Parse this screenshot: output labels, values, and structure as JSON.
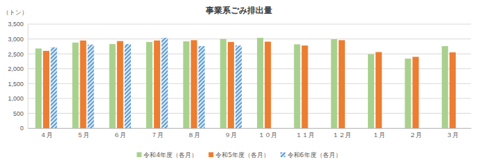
{
  "chart_data": {
    "type": "bar",
    "title": "事業系ごみ排出量",
    "y_label": "（トン）",
    "categories": [
      "４月",
      "５月",
      "６月",
      "７月",
      "８月",
      "９月",
      "１０月",
      "１１月",
      "１２月",
      "１月",
      "２月",
      "３月"
    ],
    "series": [
      {
        "name": "令和4年度（各月）",
        "color": "#a9d18e",
        "values": [
          2680,
          2880,
          2830,
          2900,
          2920,
          3000,
          3040,
          2820,
          2990,
          2490,
          2340,
          2760
        ]
      },
      {
        "name": "令和5年度（各月）",
        "color": "#ed7d31",
        "values": [
          2600,
          2950,
          2930,
          2950,
          2960,
          2900,
          2910,
          2780,
          2960,
          2560,
          2400,
          2550
        ]
      },
      {
        "name": "令和6年度（各月）",
        "color": "#5b9bd5",
        "values": [
          2720,
          2810,
          2830,
          3040,
          2760,
          2780,
          null,
          null,
          null,
          null,
          null,
          null
        ]
      }
    ],
    "ylim": [
      0,
      3500
    ],
    "yticks": [
      0,
      500,
      {
        "value": 1000,
        "label": "1,000"
      },
      {
        "value": 1500,
        "label": "1,500"
      },
      {
        "value": 2000,
        "label": "2,000"
      },
      {
        "value": 2500,
        "label": "2,500"
      },
      {
        "value": 3000,
        "label": "3,000"
      },
      {
        "value": 3500,
        "label": "3,500"
      }
    ],
    "grid": true,
    "legend": "bottom"
  }
}
